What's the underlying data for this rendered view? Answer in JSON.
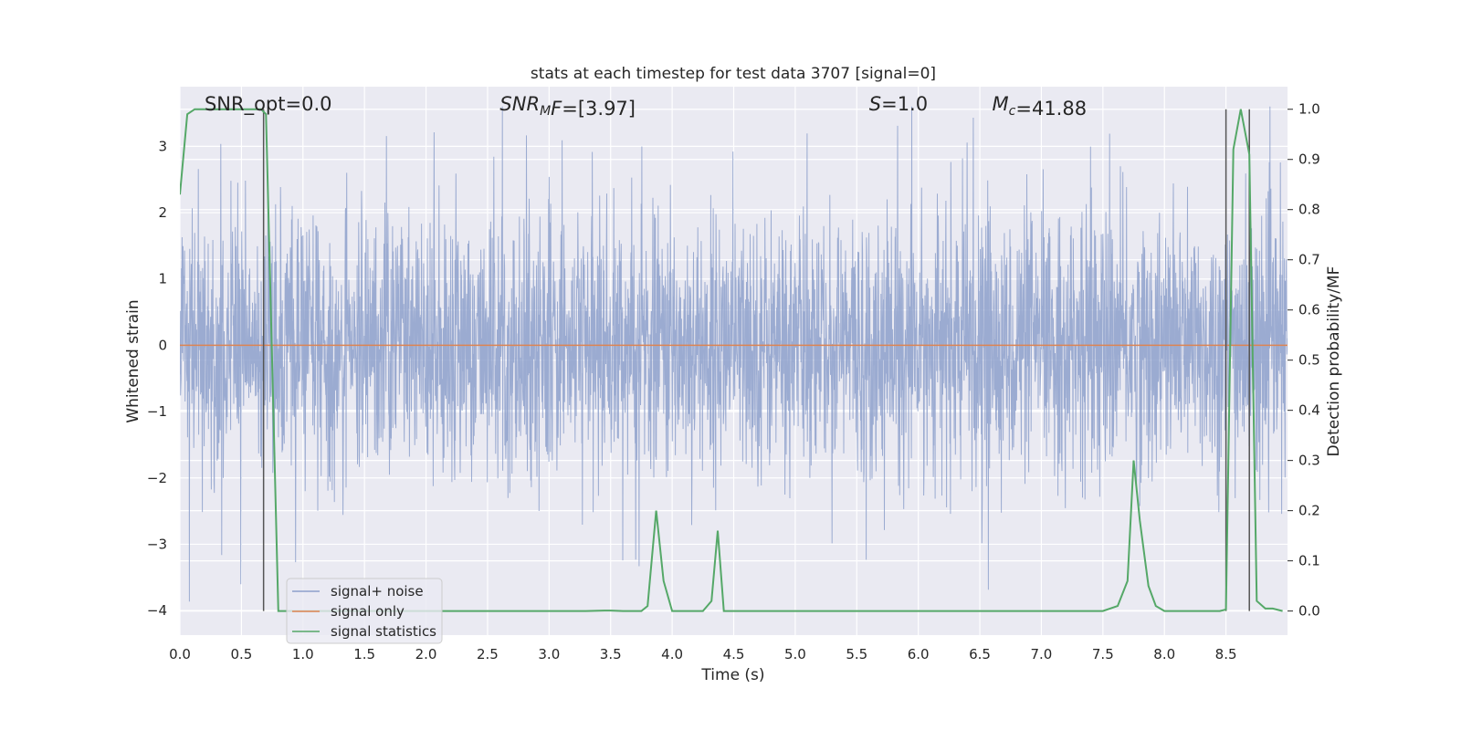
{
  "chart_data": {
    "type": "line",
    "title": "stats at each timestep for test data 3707 [signal=0]",
    "xlabel": "Time (s)",
    "ylabel": "Whitened strain",
    "ylabel_right": "Detection probability/MF",
    "xlim": [
      0.0,
      9.0
    ],
    "ylim": [
      -4.37,
      3.9
    ],
    "ylim_right": [
      -0.048,
      1.045
    ],
    "x_ticks": [
      0.0,
      0.5,
      1.0,
      1.5,
      2.0,
      2.5,
      3.0,
      3.5,
      4.0,
      4.5,
      5.0,
      5.5,
      6.0,
      6.5,
      7.0,
      7.5,
      8.0,
      8.5
    ],
    "x_tick_labels": [
      "0.0",
      "0.5",
      "1.0",
      "1.5",
      "2.0",
      "2.5",
      "3.0",
      "3.5",
      "4.0",
      "4.5",
      "5.0",
      "5.5",
      "6.0",
      "6.5",
      "7.0",
      "7.5",
      "8.0",
      "8.5"
    ],
    "y_ticks": [
      -4,
      -3,
      -2,
      -1,
      0,
      1,
      2,
      3
    ],
    "y_tick_labels": [
      "−4",
      "−3",
      "−2",
      "−1",
      "0",
      "1",
      "2",
      "3"
    ],
    "y_right_ticks": [
      0.0,
      0.1,
      0.2,
      0.3,
      0.4,
      0.5,
      0.6,
      0.7,
      0.8,
      0.9,
      1.0
    ],
    "y_right_tick_labels": [
      "0.0",
      "0.1",
      "0.2",
      "0.3",
      "0.4",
      "0.5",
      "0.6",
      "0.7",
      "0.8",
      "0.9",
      "1.0"
    ],
    "grid": true,
    "legend_position": "bottom-left",
    "annotations": [
      {
        "id": "snr-opt",
        "x": 0.2,
        "parts": [
          {
            "t": "SNR_opt=0.0",
            "style": "normal"
          }
        ]
      },
      {
        "id": "snr-mf",
        "x": 2.6,
        "parts": [
          {
            "t": "SNR",
            "style": "italic"
          },
          {
            "t": "M",
            "style": "italic-sub"
          },
          {
            "t": "F",
            "style": "italic"
          },
          {
            "t": "=[3.97]",
            "style": "normal"
          }
        ]
      },
      {
        "id": "s-value",
        "x": 5.6,
        "parts": [
          {
            "t": "S",
            "style": "italic"
          },
          {
            "t": "=1.0",
            "style": "normal"
          }
        ]
      },
      {
        "id": "mc-value",
        "x": 6.6,
        "parts": [
          {
            "t": "M",
            "style": "italic"
          },
          {
            "t": "c",
            "style": "italic-sub"
          },
          {
            "t": "=41.88",
            "style": "normal"
          }
        ]
      }
    ],
    "vertical_markers": [
      0.68,
      8.5,
      8.69
    ],
    "series": [
      {
        "name": "signal+ noise",
        "color": "#8da0cb",
        "axis": "left",
        "description_only": "dense whitened noise trace, roughly within [-2.2, 2.2] with spikes to about ±3.7"
      },
      {
        "name": "signal only",
        "color": "#dd8452",
        "axis": "left",
        "x": [
          0.0,
          9.0
        ],
        "y": [
          0.0,
          0.0
        ]
      },
      {
        "name": "signal statistics",
        "color": "#55a868",
        "axis": "right",
        "x": [
          0.0,
          0.06,
          0.12,
          0.3,
          0.5,
          0.66,
          0.7,
          0.8,
          1.0,
          2.0,
          3.0,
          3.3,
          3.45,
          3.5,
          3.6,
          3.75,
          3.8,
          3.87,
          3.93,
          4.0,
          4.1,
          4.25,
          4.32,
          4.37,
          4.42,
          4.5,
          5.0,
          6.0,
          7.0,
          7.5,
          7.62,
          7.7,
          7.75,
          7.8,
          7.87,
          7.93,
          8.0,
          8.2,
          8.45,
          8.5,
          8.56,
          8.62,
          8.69,
          8.75,
          8.82,
          8.88,
          8.96
        ],
        "y": [
          0.83,
          0.99,
          1.0,
          1.0,
          1.0,
          1.0,
          0.99,
          0.0,
          0.0,
          0.0,
          0.0,
          0.0,
          0.001,
          0.001,
          0.0,
          0.0,
          0.01,
          0.2,
          0.06,
          0.0,
          0.0,
          0.0,
          0.02,
          0.16,
          0.0,
          0.0,
          0.0,
          0.0,
          0.0,
          0.0,
          0.01,
          0.06,
          0.3,
          0.18,
          0.05,
          0.01,
          0.0,
          0.0,
          0.0,
          0.003,
          0.92,
          1.0,
          0.91,
          0.02,
          0.005,
          0.005,
          0.0
        ]
      }
    ]
  }
}
